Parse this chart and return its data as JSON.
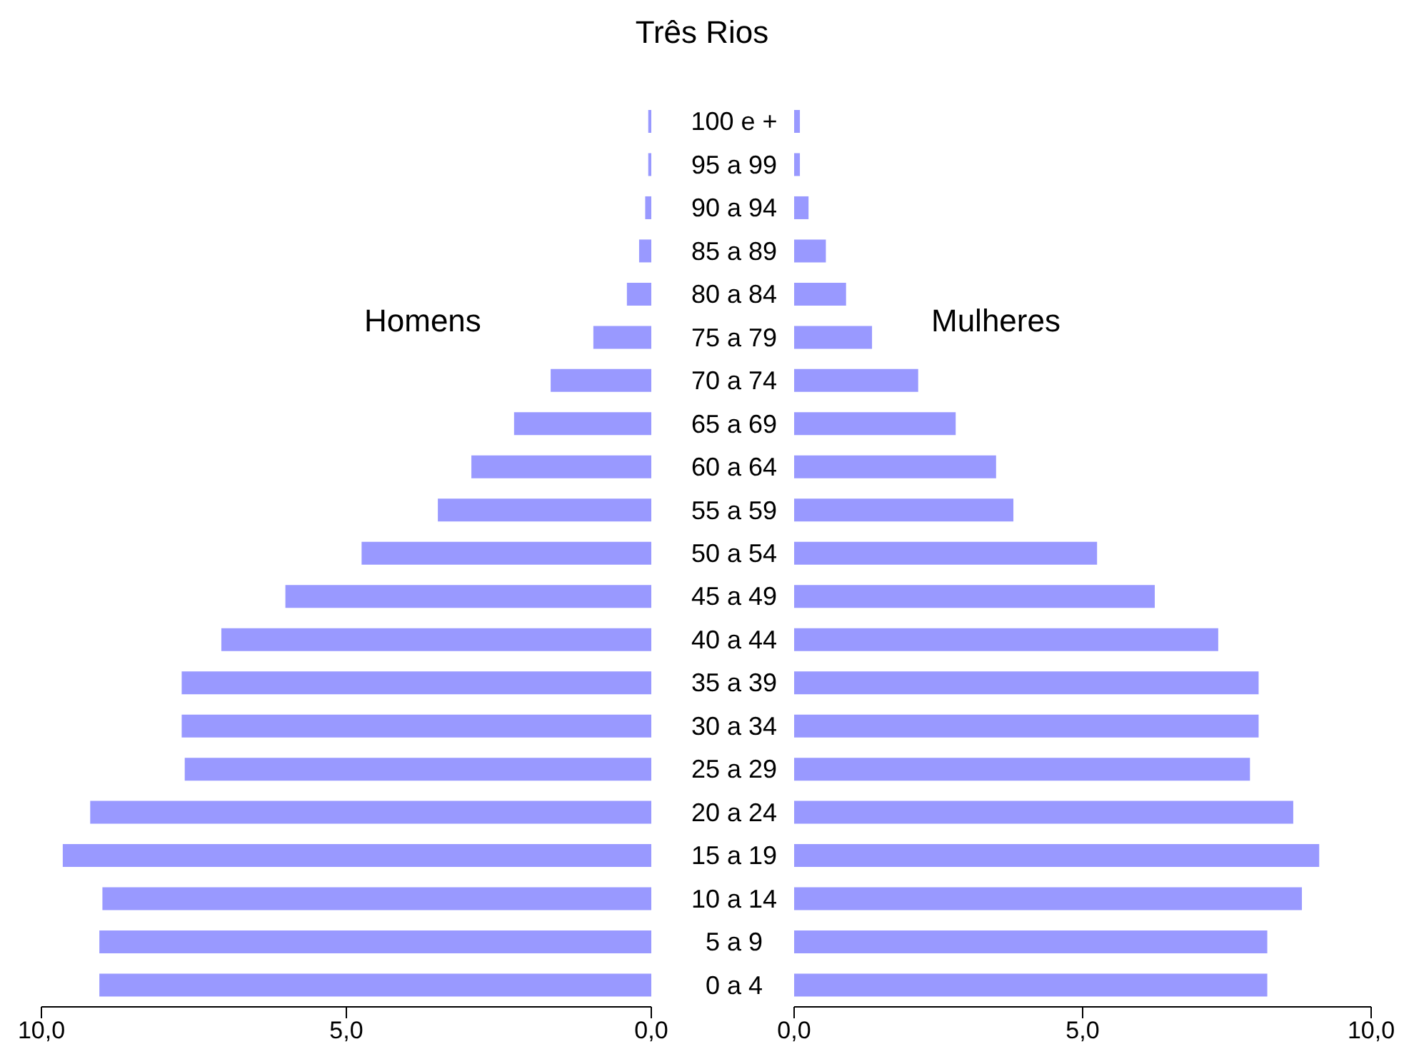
{
  "chart_data": [
    {
      "type": "bar",
      "orientation": "horizontal",
      "title": "Três Rios",
      "categories": [
        "100 e +",
        "95 a 99",
        "90 a 94",
        "85 a 89",
        "80 a 84",
        "75 a 79",
        "70 a 74",
        "65 a 69",
        "60 a 64",
        "55 a 59",
        "50 a 54",
        "45 a 49",
        "40 a 44",
        "35 a 39",
        "30 a 34",
        "25 a 29",
        "20 a 24",
        "15 a 19",
        "10 a 14",
        "5 a 9",
        "0 a 4"
      ],
      "series": [
        {
          "name": "Homens",
          "color": "#9999ff",
          "values": [
            0.05,
            0.05,
            0.1,
            0.2,
            0.4,
            0.95,
            1.65,
            2.25,
            2.95,
            3.5,
            4.75,
            6.0,
            7.05,
            7.7,
            7.7,
            7.65,
            9.2,
            9.65,
            9.0,
            9.05,
            9.05
          ]
        }
      ],
      "xlim": [
        10,
        0
      ],
      "xticks": [
        {
          "value": 10,
          "label": "10,0"
        },
        {
          "value": 5,
          "label": "5,0"
        },
        {
          "value": 0,
          "label": "0,0"
        }
      ]
    },
    {
      "type": "bar",
      "orientation": "horizontal",
      "series": [
        {
          "name": "Mulheres",
          "color": "#9999ff",
          "values": [
            0.1,
            0.1,
            0.25,
            0.55,
            0.9,
            1.35,
            2.15,
            2.8,
            3.5,
            3.8,
            5.25,
            6.25,
            7.35,
            8.05,
            8.05,
            7.9,
            8.65,
            9.1,
            8.8,
            8.2,
            8.2
          ]
        }
      ],
      "xlim": [
        0,
        10
      ],
      "xticks": [
        {
          "value": 0,
          "label": "0,0"
        },
        {
          "value": 5,
          "label": "5,0"
        },
        {
          "value": 10,
          "label": "10,0"
        }
      ],
      "tick_labels": "x"
    }
  ]
}
